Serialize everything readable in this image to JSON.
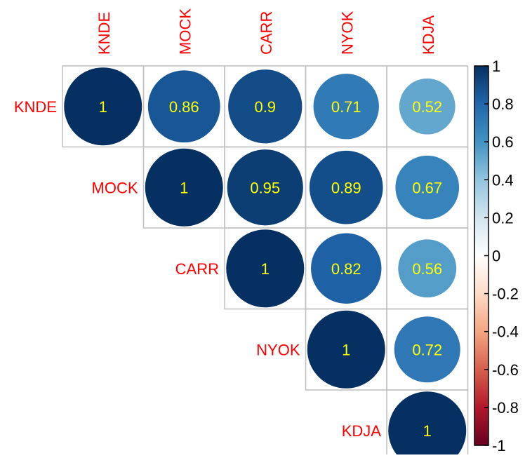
{
  "chart_data": {
    "type": "heatmap",
    "variables": [
      "KNDE",
      "MOCK",
      "CARR",
      "NYOK",
      "KDJA"
    ],
    "matrix": [
      [
        1,
        0.86,
        0.9,
        0.71,
        0.52
      ],
      [
        null,
        1,
        0.95,
        0.89,
        0.67
      ],
      [
        null,
        null,
        1,
        0.82,
        0.56
      ],
      [
        null,
        null,
        null,
        1,
        0.72
      ],
      [
        null,
        null,
        null,
        null,
        1
      ]
    ],
    "value_labels": [
      [
        "1",
        "0.86",
        "0.9",
        "0.71",
        "0.52"
      ],
      [
        null,
        "1",
        "0.95",
        "0.89",
        "0.67"
      ],
      [
        null,
        null,
        "1",
        "0.82",
        "0.56"
      ],
      [
        null,
        null,
        null,
        "1",
        "0.72"
      ],
      [
        null,
        null,
        null,
        null,
        "1"
      ]
    ],
    "triangle": "upper",
    "legend": {
      "range": [
        -1,
        1
      ],
      "ticks": [
        1,
        0.8,
        0.6,
        0.4,
        0.2,
        0,
        -0.2,
        -0.4,
        -0.6,
        -0.8,
        -1
      ],
      "tick_labels": [
        "1",
        "0.8",
        "0.6",
        "0.4",
        "0.2",
        "0",
        "-0.2",
        "-0.4",
        "-0.6",
        "-0.8",
        "-1"
      ],
      "placement": "right"
    },
    "colors": {
      "label": "#ff0000",
      "value_text": "#ffff00",
      "grid": "#bfbfbf",
      "scale": [
        "#67001f",
        "#b2182b",
        "#d6604d",
        "#f4a582",
        "#fddbc7",
        "#ffffff",
        "#d1e5f0",
        "#92c5de",
        "#4393c3",
        "#2166ac",
        "#053061"
      ]
    }
  }
}
